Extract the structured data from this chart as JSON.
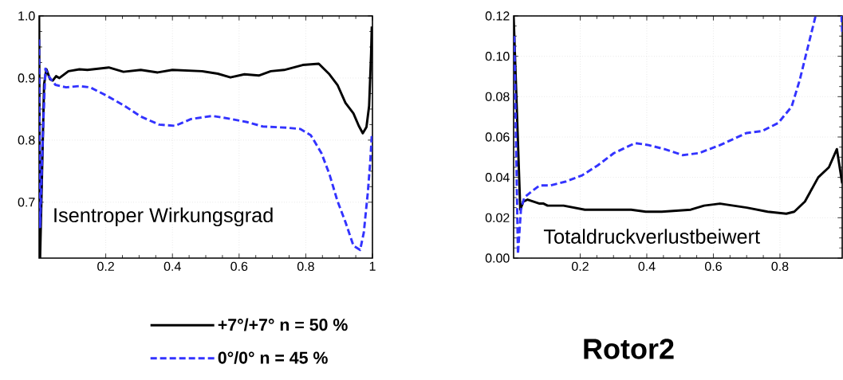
{
  "chart_data": [
    {
      "type": "line",
      "xlim": [
        0,
        1
      ],
      "ylim": [
        0.61,
        1.0
      ],
      "xticks": [
        0.2,
        0.4,
        0.6,
        0.8,
        1
      ],
      "yticks": [
        0.7,
        0.8,
        0.9,
        {
          "value": 1.0,
          "label": "1.0"
        }
      ],
      "grid": true,
      "legend": "bottom",
      "marker": "none",
      "annotations": [
        "Isentroper Wirkungsgrad"
      ],
      "series": [
        {
          "name": "+7°/+7° n = 50 %",
          "color": "#000000",
          "line_style": "solid",
          "x": [
            0,
            0.003,
            0.015,
            0.022,
            0.033,
            0.041,
            0.051,
            0.061,
            0.088,
            0.121,
            0.145,
            0.209,
            0.253,
            0.305,
            0.356,
            0.4,
            0.488,
            0.536,
            0.574,
            0.616,
            0.659,
            0.695,
            0.735,
            0.791,
            0.839,
            0.871,
            0.895,
            0.919,
            0.943,
            0.959,
            0.971,
            0.982,
            0.99,
            0.996,
            0.998
          ],
          "values": [
            1.0,
            0.61,
            0.89,
            0.914,
            0.898,
            0.896,
            0.903,
            0.9,
            0.911,
            0.914,
            0.913,
            0.917,
            0.91,
            0.913,
            0.909,
            0.913,
            0.911,
            0.907,
            0.901,
            0.906,
            0.904,
            0.911,
            0.913,
            0.921,
            0.923,
            0.906,
            0.889,
            0.86,
            0.843,
            0.823,
            0.811,
            0.821,
            0.855,
            0.94,
            0.983
          ]
        },
        {
          "name": "0°/0° n = 45 %",
          "color": "#3333ff",
          "line_style": "dashed",
          "x": [
            0,
            0.003,
            0.011,
            0.019,
            0.03,
            0.049,
            0.081,
            0.121,
            0.153,
            0.201,
            0.257,
            0.305,
            0.36,
            0.408,
            0.456,
            0.52,
            0.576,
            0.624,
            0.671,
            0.743,
            0.783,
            0.815,
            0.847,
            0.871,
            0.895,
            0.919,
            0.943,
            0.963,
            0.974,
            0.986,
            0.994,
            0.998
          ],
          "values": [
            0.962,
            0.66,
            0.804,
            0.915,
            0.902,
            0.889,
            0.885,
            0.887,
            0.885,
            0.872,
            0.855,
            0.838,
            0.825,
            0.823,
            0.834,
            0.839,
            0.834,
            0.829,
            0.822,
            0.82,
            0.818,
            0.808,
            0.779,
            0.745,
            0.702,
            0.668,
            0.63,
            0.623,
            0.651,
            0.715,
            0.77,
            0.808
          ]
        }
      ]
    },
    {
      "type": "line",
      "xlim": [
        0,
        0.987
      ],
      "ylim": [
        0,
        0.12
      ],
      "xticks": [
        0.2,
        0.4,
        0.6,
        0.8
      ],
      "yticks": [
        {
          "value": 0,
          "label": "0.00"
        },
        {
          "value": 0.02,
          "label": "0.02"
        },
        {
          "value": 0.04,
          "label": "0.04"
        },
        {
          "value": 0.06,
          "label": "0.06"
        },
        {
          "value": 0.08,
          "label": "0.08"
        },
        {
          "value": 0.1,
          "label": "0.10"
        },
        {
          "value": 0.12,
          "label": "0.12"
        }
      ],
      "grid": true,
      "marker": "none",
      "annotations": [
        "Totaldruckverlustbeiwert",
        "Rotor2"
      ],
      "series": [
        {
          "color": "#000000",
          "line_style": "solid",
          "x": [
            0,
            0.02,
            0.029,
            0.042,
            0.078,
            0.09,
            0.102,
            0.15,
            0.214,
            0.269,
            0.309,
            0.353,
            0.397,
            0.445,
            0.532,
            0.572,
            0.62,
            0.7,
            0.763,
            0.819,
            0.843,
            0.875,
            0.915,
            0.947,
            0.971,
            0.987
          ],
          "values": [
            0.12,
            0.024,
            0.028,
            0.029,
            0.027,
            0.027,
            0.026,
            0.026,
            0.024,
            0.024,
            0.024,
            0.024,
            0.023,
            0.023,
            0.024,
            0.026,
            0.027,
            0.025,
            0.023,
            0.022,
            0.023,
            0.028,
            0.04,
            0.045,
            0.054,
            0.037
          ]
        },
        {
          "color": "#3333ff",
          "line_style": "dashed",
          "x": [
            0.002,
            0.013,
            0.022,
            0.032,
            0.054,
            0.078,
            0.11,
            0.158,
            0.206,
            0.253,
            0.301,
            0.365,
            0.405,
            0.453,
            0.508,
            0.556,
            0.62,
            0.7,
            0.747,
            0.795,
            0.835,
            0.859,
            0.883,
            0.907,
            0.95,
            0.985,
            0.987
          ],
          "values": [
            0.11,
            0.002,
            0.024,
            0.03,
            0.033,
            0.036,
            0.036,
            0.038,
            0.041,
            0.046,
            0.052,
            0.057,
            0.056,
            0.054,
            0.051,
            0.052,
            0.056,
            0.062,
            0.063,
            0.067,
            0.075,
            0.088,
            0.104,
            0.12,
            null,
            0.12,
            0.112
          ]
        }
      ]
    }
  ]
}
